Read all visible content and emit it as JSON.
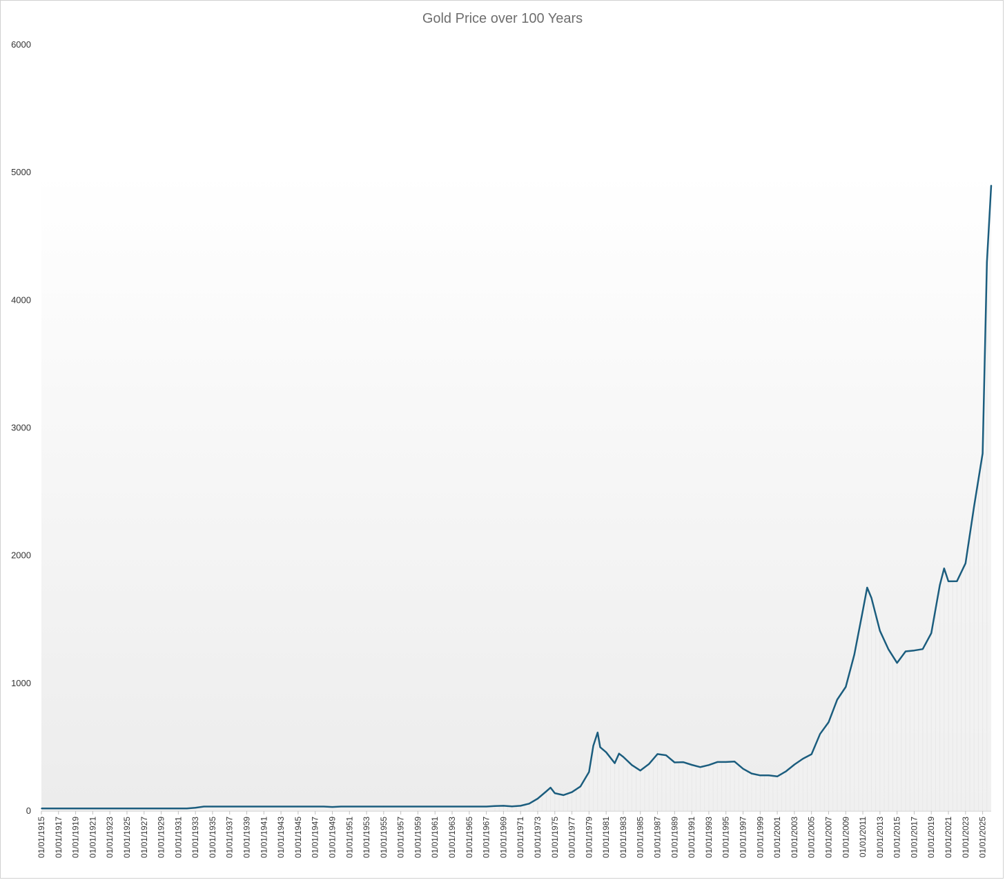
{
  "chart_data": {
    "type": "area",
    "title": "Gold Price over 100 Years",
    "xlabel": "",
    "ylabel": "",
    "ylim": [
      0,
      6000
    ],
    "y_ticks": [
      0,
      1000,
      2000,
      3000,
      4000,
      5000,
      6000
    ],
    "x_tick_labels": [
      "01/01/1915",
      "01/01/1917",
      "01/01/1919",
      "01/01/1921",
      "01/01/1923",
      "01/01/1925",
      "01/01/1927",
      "01/01/1929",
      "01/01/1931",
      "01/01/1933",
      "01/01/1935",
      "01/01/1937",
      "01/01/1939",
      "01/01/1941",
      "01/01/1943",
      "01/01/1945",
      "01/01/1947",
      "01/01/1949",
      "01/01/1951",
      "01/01/1953",
      "01/01/1955",
      "01/01/1957",
      "01/01/1959",
      "01/01/1961",
      "01/01/1963",
      "01/01/1965",
      "01/01/1967",
      "01/01/1969",
      "01/01/1971",
      "01/01/1973",
      "01/01/1975",
      "01/01/1977",
      "01/01/1979",
      "01/01/1981",
      "01/01/1983",
      "01/01/1985",
      "01/01/1987",
      "01/01/1989",
      "01/01/1991",
      "01/01/1993",
      "01/01/1995",
      "01/01/1997",
      "01/01/1999",
      "01/01/2001",
      "01/01/2003",
      "01/01/2005",
      "01/01/2007",
      "01/01/2009",
      "01/01/2011",
      "01/01/2013",
      "01/01/2015",
      "01/01/2017",
      "01/01/2019",
      "01/01/2021",
      "01/01/2023",
      "01/01/2025"
    ],
    "grid": false,
    "legend": "none",
    "colors": {
      "line": "#1b5d7e",
      "area_top": "#ffffff",
      "area_bottom": "#ececec",
      "drop_line": "#d8d8d8"
    },
    "series": [
      {
        "x": [
          1915,
          1920,
          1925,
          1930,
          1932,
          1933,
          1934,
          1935,
          1940,
          1945,
          1948,
          1949,
          1950,
          1955,
          1960,
          1965,
          1967,
          1968,
          1969,
          1970,
          1971,
          1972,
          1973,
          1974,
          1974.5,
          1975,
          1976,
          1977,
          1978,
          1979,
          1979.5,
          1980,
          1980.3,
          1981,
          1982,
          1982.5,
          1983,
          1984,
          1985,
          1986,
          1987,
          1988,
          1989,
          1990,
          1991,
          1992,
          1993,
          1994,
          1995,
          1996,
          1997,
          1998,
          1999,
          2000,
          2001,
          2002,
          2003,
          2004,
          2005,
          2006,
          2007,
          2008,
          2009,
          2010,
          2011,
          2011.5,
          2012,
          2013,
          2014,
          2015,
          2016,
          2017,
          2018,
          2019,
          2020,
          2020.5,
          2021,
          2022,
          2023,
          2024,
          2025,
          2025.5,
          2026
        ],
        "y": [
          20,
          20,
          20,
          20,
          20,
          26,
          35,
          35,
          35,
          35,
          35,
          32,
          35,
          35,
          35,
          35,
          35,
          39,
          41,
          36,
          41,
          58,
          97,
          154,
          183,
          140,
          125,
          148,
          193,
          307,
          512,
          615,
          500,
          460,
          375,
          450,
          424,
          360,
          317,
          368,
          446,
          437,
          381,
          383,
          362,
          344,
          360,
          384,
          384,
          388,
          331,
          294,
          279,
          279,
          271,
          310,
          364,
          410,
          445,
          604,
          696,
          872,
          972,
          1225,
          1572,
          1750,
          1669,
          1411,
          1266,
          1160,
          1250,
          1257,
          1268,
          1393,
          1770,
          1900,
          1799,
          1800,
          1940,
          2386,
          2800,
          4300,
          4900
        ]
      }
    ]
  }
}
